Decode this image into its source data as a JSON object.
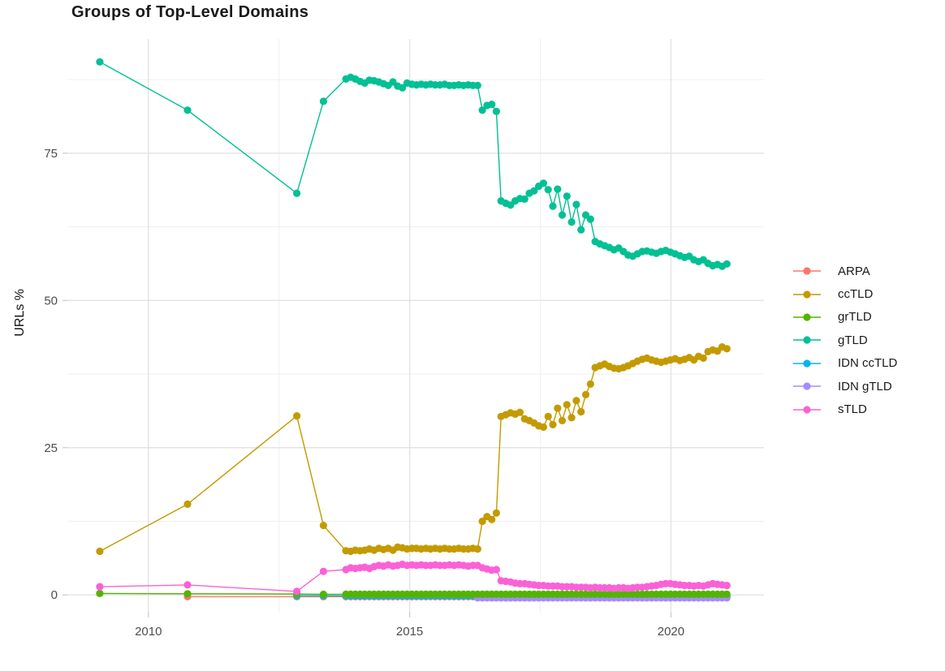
{
  "chart_data": {
    "type": "line",
    "title": "Groups of Top-Level Domains",
    "xlabel": "",
    "ylabel": "URLs %",
    "grid": true,
    "legend_position": "right",
    "x_axis": {
      "tick_labels": [
        "2010",
        "2015",
        "2020"
      ],
      "tick_values": [
        2010,
        2015,
        2020
      ],
      "minor_gridlines": [
        2012.5,
        2017.5
      ],
      "range": [
        2008.45,
        2021.78
      ]
    },
    "y_axis": {
      "tick_labels": [
        "0",
        "25",
        "50",
        "75"
      ],
      "tick_values": [
        0,
        25,
        50,
        75
      ],
      "minor_gridlines": [
        12.5,
        37.5,
        62.5,
        87.5
      ],
      "range": [
        -3,
        94.4
      ]
    },
    "draw_order": [
      "ARPA",
      "IDN ccTLD",
      "IDN gTLD",
      "grTLD",
      "gTLD",
      "ccTLD",
      "sTLD"
    ],
    "series": [
      {
        "name": "ARPA",
        "color": "#F8766D",
        "points": [
          [
            2010.75,
            -0.3
          ],
          [
            2012.84,
            -0.3
          ],
          [
            2013.35,
            -0.3
          ]
        ],
        "runs": [
          {
            "from": 2013.78,
            "to": 2021.07,
            "step": 0.09,
            "value": -0.3
          }
        ]
      },
      {
        "name": "ccTLD",
        "color": "#C49A00",
        "points": [
          [
            2009.07,
            7.4
          ],
          [
            2010.75,
            15.4
          ],
          [
            2012.84,
            30.4
          ],
          [
            2013.35,
            11.8
          ],
          [
            2013.78,
            7.5
          ],
          [
            2013.87,
            7.4
          ],
          [
            2013.96,
            7.6
          ],
          [
            2014.05,
            7.5
          ],
          [
            2014.14,
            7.6
          ],
          [
            2014.23,
            7.8
          ],
          [
            2014.32,
            7.6
          ],
          [
            2014.41,
            7.9
          ],
          [
            2014.5,
            7.7
          ],
          [
            2014.59,
            7.9
          ],
          [
            2014.68,
            7.6
          ],
          [
            2014.77,
            8.1
          ],
          [
            2014.86,
            8.0
          ],
          [
            2014.95,
            7.8
          ],
          [
            2015.04,
            7.9
          ],
          [
            2015.13,
            7.9
          ],
          [
            2015.22,
            7.8
          ],
          [
            2015.31,
            7.9
          ],
          [
            2015.4,
            7.8
          ],
          [
            2015.49,
            7.9
          ],
          [
            2015.58,
            7.8
          ],
          [
            2015.67,
            7.9
          ],
          [
            2015.76,
            7.8
          ],
          [
            2015.85,
            7.8
          ],
          [
            2015.94,
            7.9
          ],
          [
            2016.03,
            7.8
          ],
          [
            2016.12,
            7.8
          ],
          [
            2016.21,
            7.9
          ],
          [
            2016.3,
            7.8
          ],
          [
            2016.39,
            12.5
          ],
          [
            2016.48,
            13.3
          ],
          [
            2016.57,
            12.8
          ],
          [
            2016.66,
            13.9
          ],
          [
            2016.75,
            30.3
          ],
          [
            2016.84,
            30.6
          ],
          [
            2016.93,
            30.9
          ],
          [
            2017.02,
            30.7
          ],
          [
            2017.11,
            31.0
          ],
          [
            2017.2,
            29.9
          ],
          [
            2017.29,
            29.6
          ],
          [
            2017.38,
            29.2
          ],
          [
            2017.47,
            28.7
          ],
          [
            2017.56,
            28.5
          ],
          [
            2017.65,
            30.3
          ],
          [
            2017.74,
            28.9
          ],
          [
            2017.83,
            31.7
          ],
          [
            2017.92,
            29.6
          ],
          [
            2018.01,
            32.3
          ],
          [
            2018.1,
            30.1
          ],
          [
            2018.19,
            33.0
          ],
          [
            2018.28,
            31.1
          ],
          [
            2018.37,
            34.0
          ],
          [
            2018.46,
            35.8
          ],
          [
            2018.55,
            38.6
          ],
          [
            2018.64,
            38.9
          ],
          [
            2018.73,
            39.2
          ],
          [
            2018.82,
            38.8
          ],
          [
            2018.91,
            38.5
          ],
          [
            2019.0,
            38.4
          ],
          [
            2019.09,
            38.6
          ],
          [
            2019.18,
            38.9
          ],
          [
            2019.27,
            39.3
          ],
          [
            2019.36,
            39.7
          ],
          [
            2019.45,
            40.0
          ],
          [
            2019.54,
            40.2
          ],
          [
            2019.63,
            39.9
          ],
          [
            2019.72,
            39.7
          ],
          [
            2019.81,
            39.5
          ],
          [
            2019.9,
            39.7
          ],
          [
            2019.99,
            39.9
          ],
          [
            2020.08,
            40.1
          ],
          [
            2020.17,
            39.8
          ],
          [
            2020.26,
            40.0
          ],
          [
            2020.35,
            40.3
          ],
          [
            2020.44,
            39.9
          ],
          [
            2020.53,
            40.5
          ],
          [
            2020.62,
            40.2
          ],
          [
            2020.71,
            41.3
          ],
          [
            2020.8,
            41.6
          ],
          [
            2020.89,
            41.4
          ],
          [
            2020.98,
            42.1
          ],
          [
            2021.07,
            41.8
          ]
        ],
        "runs": []
      },
      {
        "name": "grTLD",
        "color": "#53B400",
        "points": [
          [
            2009.07,
            0.25
          ],
          [
            2010.75,
            0.2
          ],
          [
            2012.84,
            0.15
          ],
          [
            2013.35,
            0.1
          ]
        ],
        "runs": [
          {
            "from": 2013.78,
            "to": 2021.07,
            "step": 0.09,
            "value": 0.12
          }
        ]
      },
      {
        "name": "gTLD",
        "color": "#00C094",
        "points": [
          [
            2009.07,
            90.5
          ],
          [
            2010.75,
            82.3
          ],
          [
            2012.84,
            68.2
          ],
          [
            2013.35,
            83.8
          ],
          [
            2013.78,
            87.6
          ],
          [
            2013.87,
            87.9
          ],
          [
            2013.96,
            87.6
          ],
          [
            2014.05,
            87.2
          ],
          [
            2014.14,
            86.9
          ],
          [
            2014.23,
            87.4
          ],
          [
            2014.32,
            87.3
          ],
          [
            2014.41,
            87.1
          ],
          [
            2014.5,
            86.8
          ],
          [
            2014.59,
            86.5
          ],
          [
            2014.68,
            87.1
          ],
          [
            2014.77,
            86.4
          ],
          [
            2014.86,
            86.1
          ],
          [
            2014.95,
            86.9
          ],
          [
            2015.04,
            86.7
          ],
          [
            2015.13,
            86.6
          ],
          [
            2015.22,
            86.7
          ],
          [
            2015.31,
            86.6
          ],
          [
            2015.4,
            86.7
          ],
          [
            2015.49,
            86.6
          ],
          [
            2015.58,
            86.6
          ],
          [
            2015.67,
            86.7
          ],
          [
            2015.76,
            86.5
          ],
          [
            2015.85,
            86.5
          ],
          [
            2015.94,
            86.6
          ],
          [
            2016.03,
            86.5
          ],
          [
            2016.12,
            86.6
          ],
          [
            2016.21,
            86.5
          ],
          [
            2016.3,
            86.5
          ],
          [
            2016.39,
            82.3
          ],
          [
            2016.48,
            83.1
          ],
          [
            2016.57,
            83.3
          ],
          [
            2016.66,
            82.1
          ],
          [
            2016.75,
            66.9
          ],
          [
            2016.84,
            66.5
          ],
          [
            2016.93,
            66.2
          ],
          [
            2017.02,
            66.9
          ],
          [
            2017.11,
            67.3
          ],
          [
            2017.2,
            67.2
          ],
          [
            2017.29,
            68.2
          ],
          [
            2017.38,
            68.6
          ],
          [
            2017.47,
            69.4
          ],
          [
            2017.56,
            69.9
          ],
          [
            2017.65,
            68.8
          ],
          [
            2017.74,
            66.0
          ],
          [
            2017.83,
            68.9
          ],
          [
            2017.92,
            64.5
          ],
          [
            2018.01,
            67.7
          ],
          [
            2018.1,
            63.3
          ],
          [
            2018.19,
            66.3
          ],
          [
            2018.28,
            62.0
          ],
          [
            2018.37,
            64.5
          ],
          [
            2018.46,
            63.8
          ],
          [
            2018.55,
            60.0
          ],
          [
            2018.64,
            59.6
          ],
          [
            2018.73,
            59.3
          ],
          [
            2018.82,
            59.0
          ],
          [
            2018.91,
            58.6
          ],
          [
            2019.0,
            58.9
          ],
          [
            2019.09,
            58.3
          ],
          [
            2019.18,
            57.7
          ],
          [
            2019.27,
            57.5
          ],
          [
            2019.36,
            57.9
          ],
          [
            2019.45,
            58.3
          ],
          [
            2019.54,
            58.4
          ],
          [
            2019.63,
            58.2
          ],
          [
            2019.72,
            58.0
          ],
          [
            2019.81,
            58.3
          ],
          [
            2019.9,
            58.5
          ],
          [
            2019.99,
            58.2
          ],
          [
            2020.08,
            57.9
          ],
          [
            2020.17,
            57.6
          ],
          [
            2020.26,
            57.3
          ],
          [
            2020.35,
            57.5
          ],
          [
            2020.44,
            56.9
          ],
          [
            2020.53,
            56.6
          ],
          [
            2020.62,
            56.9
          ],
          [
            2020.71,
            56.3
          ],
          [
            2020.8,
            55.9
          ],
          [
            2020.89,
            56.1
          ],
          [
            2020.98,
            55.8
          ],
          [
            2021.07,
            56.2
          ]
        ],
        "runs": []
      },
      {
        "name": "IDN ccTLD",
        "color": "#00B6EB",
        "points": [
          [
            2012.84,
            -0.12
          ],
          [
            2013.35,
            -0.15
          ]
        ],
        "runs": [
          {
            "from": 2013.78,
            "to": 2021.07,
            "step": 0.09,
            "value": -0.15
          }
        ]
      },
      {
        "name": "IDN gTLD",
        "color": "#A58AFF",
        "points": [],
        "runs": [
          {
            "from": 2016.3,
            "to": 2021.07,
            "step": 0.09,
            "value": -0.5
          }
        ]
      },
      {
        "name": "sTLD",
        "color": "#FB61D7",
        "points": [
          [
            2009.07,
            1.4
          ],
          [
            2010.75,
            1.7
          ],
          [
            2012.84,
            0.6
          ],
          [
            2013.35,
            4.0
          ],
          [
            2013.78,
            4.3
          ],
          [
            2013.87,
            4.6
          ],
          [
            2013.96,
            4.5
          ],
          [
            2014.05,
            4.6
          ],
          [
            2014.14,
            4.7
          ],
          [
            2014.23,
            4.5
          ],
          [
            2014.32,
            4.8
          ],
          [
            2014.41,
            5.0
          ],
          [
            2014.5,
            4.9
          ],
          [
            2014.59,
            5.1
          ],
          [
            2014.68,
            4.9
          ],
          [
            2014.77,
            5.0
          ],
          [
            2014.86,
            5.2
          ],
          [
            2014.95,
            5.0
          ],
          [
            2015.04,
            5.1
          ],
          [
            2015.13,
            5.0
          ],
          [
            2015.22,
            5.1
          ],
          [
            2015.31,
            5.0
          ],
          [
            2015.4,
            5.0
          ],
          [
            2015.49,
            5.1
          ],
          [
            2015.58,
            5.0
          ],
          [
            2015.67,
            5.0
          ],
          [
            2015.76,
            5.1
          ],
          [
            2015.85,
            5.0
          ],
          [
            2015.94,
            5.1
          ],
          [
            2016.03,
            5.0
          ],
          [
            2016.12,
            4.9
          ],
          [
            2016.21,
            5.0
          ],
          [
            2016.3,
            5.0
          ],
          [
            2016.39,
            4.6
          ],
          [
            2016.48,
            4.4
          ],
          [
            2016.57,
            4.2
          ],
          [
            2016.66,
            4.3
          ],
          [
            2016.75,
            2.4
          ],
          [
            2016.84,
            2.3
          ],
          [
            2016.93,
            2.2
          ],
          [
            2017.02,
            2.0
          ],
          [
            2017.11,
            1.9
          ],
          [
            2017.2,
            1.9
          ],
          [
            2017.29,
            1.8
          ],
          [
            2017.38,
            1.7
          ],
          [
            2017.47,
            1.6
          ],
          [
            2017.56,
            1.6
          ],
          [
            2017.65,
            1.5
          ],
          [
            2017.74,
            1.5
          ],
          [
            2017.83,
            1.5
          ],
          [
            2017.92,
            1.4
          ],
          [
            2018.01,
            1.4
          ],
          [
            2018.1,
            1.4
          ],
          [
            2018.19,
            1.3
          ],
          [
            2018.28,
            1.3
          ],
          [
            2018.37,
            1.3
          ],
          [
            2018.46,
            1.2
          ],
          [
            2018.55,
            1.3
          ],
          [
            2018.64,
            1.2
          ],
          [
            2018.73,
            1.2
          ],
          [
            2018.82,
            1.2
          ],
          [
            2018.91,
            1.1
          ],
          [
            2019.0,
            1.2
          ],
          [
            2019.09,
            1.2
          ],
          [
            2019.18,
            1.1
          ],
          [
            2019.27,
            1.2
          ],
          [
            2019.36,
            1.3
          ],
          [
            2019.45,
            1.3
          ],
          [
            2019.54,
            1.4
          ],
          [
            2019.63,
            1.5
          ],
          [
            2019.72,
            1.6
          ],
          [
            2019.81,
            1.8
          ],
          [
            2019.9,
            1.9
          ],
          [
            2019.99,
            1.9
          ],
          [
            2020.08,
            1.8
          ],
          [
            2020.17,
            1.7
          ],
          [
            2020.26,
            1.6
          ],
          [
            2020.35,
            1.6
          ],
          [
            2020.44,
            1.5
          ],
          [
            2020.53,
            1.6
          ],
          [
            2020.62,
            1.5
          ],
          [
            2020.71,
            1.7
          ],
          [
            2020.8,
            1.9
          ],
          [
            2020.89,
            1.8
          ],
          [
            2020.98,
            1.7
          ],
          [
            2021.07,
            1.6
          ]
        ],
        "runs": []
      }
    ],
    "legend_items": [
      "ARPA",
      "ccTLD",
      "grTLD",
      "gTLD",
      "IDN ccTLD",
      "IDN gTLD",
      "sTLD"
    ]
  },
  "style": {
    "background": "#ffffff",
    "major_gridline_color": "#e3e3e3",
    "minor_gridline_color": "#efefef",
    "tick_mark_color": "#c9c9c9",
    "tick_label_color": "#4d4d4d",
    "text_color": "#1a1a1a"
  }
}
